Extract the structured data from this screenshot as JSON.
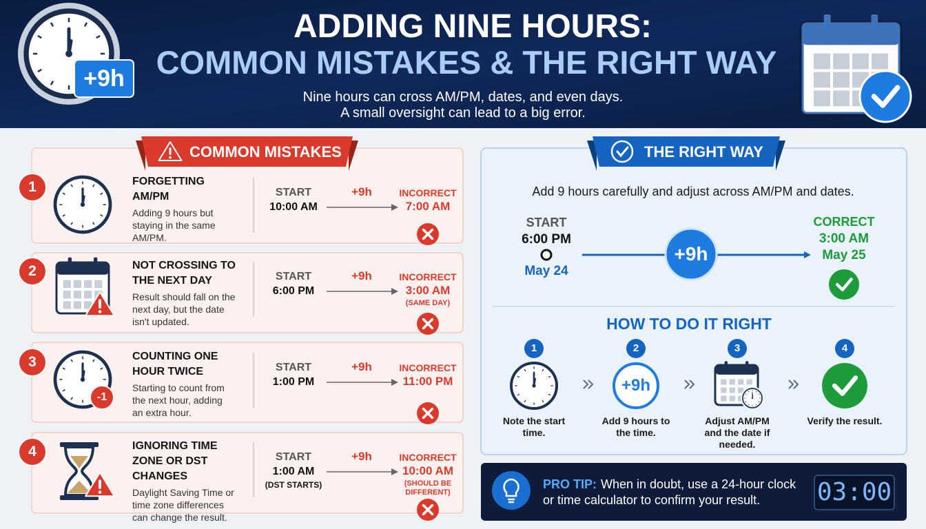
{
  "header": {
    "title": "ADDING NINE HOURS:",
    "subtitle_title": "COMMON MISTAKES & THE RIGHT WAY",
    "tagline": [
      "Nine hours can cross AM/PM, dates, and even days.",
      "A small oversight can lead to a big error."
    ],
    "badge": "+9h"
  },
  "mistakes": {
    "heading": "COMMON MISTAKES",
    "items": [
      {
        "number": 1,
        "title": "FORGETTING AM/PM",
        "description": "Adding 9 hours but staying in the same AM/PM.",
        "start_label": "START",
        "start": "10:00 AM",
        "add": "+9h",
        "result_label": "INCORRECT",
        "result": "7:00 AM"
      },
      {
        "number": 2,
        "title": "NOT CROSSING TO THE NEXT DAY",
        "description": "Result should fall on the next day, but the date isn't updated.",
        "start_label": "START",
        "start": "6:00 PM",
        "add": "+9h",
        "result_label": "INCORRECT",
        "result": "3:00 AM",
        "result_note": "(SAME DAY)"
      },
      {
        "number": 3,
        "title": "COUNTING ONE HOUR TWICE",
        "description": "Starting to count from the next hour, adding an extra hour.",
        "icon_badge": "-1",
        "start_label": "START",
        "start": "1:00 PM",
        "add": "+9h",
        "result_label": "INCORRECT",
        "result": "11:00 PM"
      },
      {
        "number": 4,
        "title": "IGNORING TIME ZONE OR DST CHANGES",
        "description": "Daylight Saving Time or time zone differences can change the result.",
        "start_label": "START",
        "start": "1:00 AM",
        "start_note": "(DST STARTS)",
        "add": "+9h",
        "result_label": "INCORRECT",
        "result": "10:00 AM",
        "result_note": "(SHOULD BE DIFFERENT)"
      }
    ]
  },
  "right_way": {
    "heading": "THE RIGHT WAY",
    "intro": "Add 9 hours carefully and adjust across AM/PM and dates.",
    "example": {
      "start_label": "START",
      "start_time": "6:00 PM",
      "start_date": "May 24",
      "add": "+9h",
      "result_label": "CORRECT",
      "result_time": "3:00 AM",
      "result_date": "May 25"
    },
    "how_heading": "HOW TO DO IT RIGHT",
    "steps": [
      {
        "number": 1,
        "label": "Note the start time."
      },
      {
        "number": 2,
        "icon_text": "+9h",
        "label": "Add 9 hours to the time."
      },
      {
        "number": 3,
        "label": "Adjust AM/PM and the date if needed."
      },
      {
        "number": 4,
        "label": "Verify the result."
      }
    ]
  },
  "pro_tip": {
    "label": "PRO TIP:",
    "text": "When in doubt, use a 24-hour clock or time calculator to confirm your result.",
    "display": "03:00"
  }
}
